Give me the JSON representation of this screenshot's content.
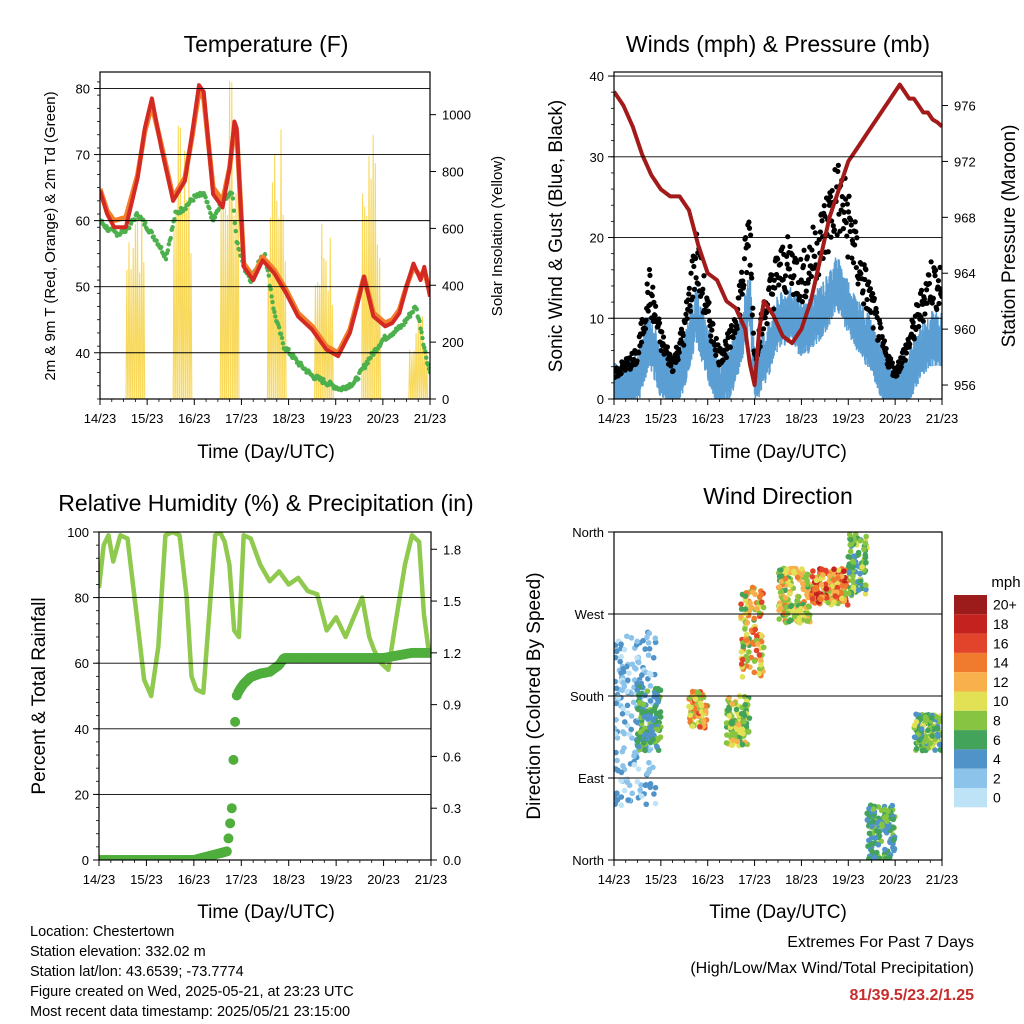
{
  "colors": {
    "temp_2m": "#d42a24",
    "temp_9m": "#f47d2a",
    "dewpoint": "#4cb04c",
    "insolation": "#f8d95c",
    "gust": "#000000",
    "wind": "#5b9fd4",
    "pressure": "#a31a1a",
    "rh": "#8fc94e",
    "precip": "#4fae3c",
    "extremes": "#c62d2d"
  },
  "x_ticks": [
    "14/23",
    "15/23",
    "16/23",
    "17/23",
    "18/23",
    "19/23",
    "20/23",
    "21/23"
  ],
  "chart_data": [
    {
      "id": "temperature",
      "type": "line",
      "title": "Temperature (F)",
      "xlabel": "Time (Day/UTC)",
      "ylabel": "2m & 9m T (Red, Orange) & 2m Td (Green)",
      "ylabel_right": "Solar Insolation (Yellow)",
      "xlim": [
        0,
        7
      ],
      "ylim": [
        33,
        82.5
      ],
      "yticks": [
        40,
        50,
        60,
        70,
        80
      ],
      "ylim_right": [
        0,
        1150
      ],
      "yticks_right": [
        0,
        200,
        400,
        600,
        800,
        1000
      ],
      "grid": true,
      "series": [
        {
          "name": "2m T",
          "color_key": "temp_2m",
          "x": [
            0,
            0.15,
            0.3,
            0.55,
            0.8,
            0.95,
            1.1,
            1.3,
            1.55,
            1.8,
            1.95,
            2.1,
            2.2,
            2.4,
            2.6,
            2.75,
            2.85,
            2.9,
            3.05,
            3.25,
            3.45,
            3.7,
            3.95,
            4.2,
            4.5,
            4.8,
            5.05,
            5.3,
            5.45,
            5.6,
            5.8,
            6.05,
            6.2,
            6.35,
            6.5,
            6.65,
            6.8,
            6.88,
            7
          ],
          "y": [
            64.5,
            61,
            59,
            59,
            66.5,
            74,
            78.5,
            71,
            63,
            66,
            73,
            80.5,
            79.5,
            64,
            62,
            68,
            75,
            74,
            53,
            51,
            54,
            52,
            49,
            45.5,
            43.5,
            40.5,
            39.5,
            43,
            47,
            51.5,
            45.5,
            44,
            44.5,
            46,
            50,
            53.5,
            51,
            53,
            48.5
          ]
        },
        {
          "name": "9m T",
          "color_key": "temp_9m",
          "x": [
            0,
            0.15,
            0.3,
            0.55,
            0.8,
            0.95,
            1.1,
            1.3,
            1.55,
            1.8,
            1.95,
            2.1,
            2.2,
            2.4,
            2.6,
            2.75,
            2.85,
            2.9,
            3.05,
            3.25,
            3.45,
            3.7,
            3.95,
            4.2,
            4.5,
            4.8,
            5.05,
            5.3,
            5.45,
            5.6,
            5.8,
            6.05,
            6.2,
            6.35,
            6.5,
            6.65,
            6.8,
            6.88,
            7
          ],
          "y": [
            64.8,
            61.5,
            60,
            60.5,
            67,
            73.5,
            77.5,
            71.5,
            63.5,
            66.5,
            72.5,
            79.5,
            78.5,
            65,
            63,
            68,
            74,
            73.5,
            53.5,
            51.5,
            54.5,
            52.5,
            49.5,
            46,
            44,
            41,
            40,
            43.5,
            47.5,
            51.5,
            46,
            44.5,
            45,
            46.5,
            50,
            53,
            51.5,
            52.5,
            49
          ]
        },
        {
          "name": "2m Td",
          "color_key": "dewpoint",
          "x": [
            0,
            0.2,
            0.4,
            0.6,
            0.8,
            1,
            1.2,
            1.4,
            1.6,
            1.8,
            2,
            2.2,
            2.4,
            2.6,
            2.8,
            2.9,
            3.05,
            3.2,
            3.35,
            3.5,
            3.7,
            3.9,
            4.2,
            4.5,
            4.8,
            5.1,
            5.4,
            5.7,
            6,
            6.2,
            6.4,
            6.55,
            6.7,
            6.8,
            6.9,
            7
          ],
          "y": [
            60,
            58.5,
            58,
            59,
            61,
            59,
            57,
            54.5,
            61,
            62,
            63.5,
            64,
            60,
            63,
            64.5,
            57,
            53,
            51,
            53.5,
            55,
            46,
            41,
            38.5,
            36.5,
            35.5,
            34.5,
            35.5,
            39,
            42,
            43,
            44,
            45.5,
            47,
            44,
            40,
            37
          ]
        },
        {
          "name": "Solar Insolation",
          "color_key": "insolation",
          "axis": "right",
          "peak_days": [
            0.75,
            1.75,
            2.75,
            3.75,
            4.75,
            5.75,
            6.75
          ],
          "peak_values": [
            820,
            1150,
            1150,
            1030,
            700,
            1060,
            320
          ]
        }
      ]
    },
    {
      "id": "winds",
      "type": "scatter",
      "title": "Winds (mph) & Pressure (mb)",
      "xlabel": "Time (Day/UTC)",
      "ylabel": "Sonic Wind & Gust (Blue, Black)",
      "ylabel_right": "Station Pressure (Maroon)",
      "xlim": [
        0,
        7
      ],
      "ylim": [
        0,
        40.5
      ],
      "yticks": [
        0,
        10,
        20,
        30,
        40
      ],
      "ylim_right": [
        955,
        978.4
      ],
      "yticks_right": [
        956,
        960,
        964,
        968,
        972,
        976
      ],
      "grid": true,
      "series": [
        {
          "name": "Wind",
          "color_key": "wind",
          "x": [
            0,
            0.25,
            0.5,
            0.75,
            1,
            1.25,
            1.5,
            1.75,
            2,
            2.25,
            2.5,
            2.75,
            2.9,
            3,
            3.25,
            3.5,
            3.75,
            4,
            4.25,
            4.5,
            4.75,
            5,
            5.25,
            5.5,
            5.75,
            6,
            6.25,
            6.5,
            6.75,
            7
          ],
          "y": [
            1.5,
            2,
            3,
            8,
            4,
            2,
            5,
            11,
            6,
            2,
            4,
            9,
            13,
            3,
            6,
            10,
            11,
            9,
            10,
            12,
            15,
            12,
            9,
            7,
            3,
            1,
            3,
            6,
            8,
            8
          ]
        },
        {
          "name": "Gust",
          "color_key": "gust",
          "x": [
            0,
            0.25,
            0.5,
            0.75,
            1,
            1.25,
            1.5,
            1.75,
            2,
            2.25,
            2.5,
            2.75,
            2.9,
            3,
            3.25,
            3.5,
            3.75,
            4,
            4.25,
            4.5,
            4.75,
            5,
            5.25,
            5.5,
            5.75,
            6,
            6.25,
            6.5,
            6.75,
            7
          ],
          "y": [
            3,
            4,
            5,
            13,
            7,
            4,
            8,
            17,
            10,
            5,
            7,
            14,
            20,
            5,
            11,
            15,
            16,
            14,
            17,
            20,
            24,
            21,
            15,
            11,
            6,
            3,
            6,
            10,
            14,
            13
          ]
        },
        {
          "name": "Pressure",
          "color_key": "pressure",
          "axis": "right",
          "x": [
            0,
            0.2,
            0.4,
            0.6,
            0.8,
            1,
            1.2,
            1.4,
            1.6,
            1.8,
            2,
            2.2,
            2.4,
            2.6,
            2.8,
            2.9,
            3,
            3.1,
            3.2,
            3.4,
            3.6,
            3.8,
            4,
            4.2,
            4.4,
            4.6,
            4.8,
            5,
            5.2,
            5.4,
            5.6,
            5.8,
            6,
            6.1,
            6.2,
            6.3,
            6.4,
            6.5,
            6.6,
            6.7,
            6.8,
            6.9,
            7
          ],
          "y": [
            977,
            976,
            974.5,
            972.5,
            971,
            970,
            969.5,
            969.5,
            968.5,
            966,
            964,
            963.5,
            962,
            961.5,
            960,
            957.5,
            956,
            960,
            962,
            961,
            959.5,
            959,
            960,
            962,
            965,
            968,
            970,
            972,
            973,
            974,
            975,
            976,
            977,
            977.5,
            977,
            976.5,
            976.5,
            976,
            975.5,
            975.5,
            975,
            974.8,
            974.5
          ]
        }
      ]
    },
    {
      "id": "humidity",
      "type": "line",
      "title": "Relative Humidity (%) & Precipitation (in)",
      "xlabel": "Time (Day/UTC)",
      "ylabel": "Percent & Total Rainfall",
      "xlim": [
        0,
        7
      ],
      "ylim": [
        0,
        100
      ],
      "yticks": [
        0,
        20,
        40,
        60,
        80,
        100
      ],
      "ylim_right": [
        0,
        1.9
      ],
      "yticks_right": [
        "0.0",
        "0.3",
        "0.6",
        "0.9",
        "1.2",
        "1.5",
        "1.8"
      ],
      "grid": true,
      "series": [
        {
          "name": "RH",
          "color_key": "rh",
          "x": [
            0,
            0.1,
            0.2,
            0.3,
            0.45,
            0.6,
            0.8,
            0.95,
            1.1,
            1.25,
            1.4,
            1.55,
            1.7,
            1.85,
            1.95,
            2.05,
            2.2,
            2.35,
            2.45,
            2.55,
            2.65,
            2.75,
            2.85,
            2.95,
            3.05,
            3.2,
            3.4,
            3.6,
            3.8,
            4,
            4.2,
            4.4,
            4.6,
            4.8,
            5,
            5.2,
            5.4,
            5.55,
            5.7,
            5.8,
            5.95,
            6.1,
            6.25,
            6.45,
            6.6,
            6.75,
            6.85,
            6.95,
            7
          ],
          "y": [
            83,
            96,
            99,
            91,
            99,
            98,
            74,
            55,
            50,
            65,
            99,
            100,
            99,
            80,
            56,
            52,
            51,
            80,
            99,
            100,
            97,
            90,
            70,
            68,
            99,
            98,
            90,
            85,
            88,
            84,
            86,
            82,
            81,
            70,
            74,
            68,
            75,
            80,
            68,
            64,
            60,
            58,
            72,
            90,
            99,
            97,
            75,
            64,
            63
          ]
        },
        {
          "name": "Precipitation",
          "color_key": "precip",
          "x": [
            0,
            1,
            2,
            2.7,
            2.8,
            2.85,
            2.9,
            2.95,
            3,
            3.05,
            3.2,
            3.4,
            3.6,
            3.8,
            3.9,
            4.2,
            4.6,
            5,
            5.4,
            5.8,
            6,
            6.2,
            6.4,
            6.6,
            6.8,
            7
          ],
          "y": [
            0,
            0,
            0,
            0.05,
            0.3,
            0.7,
            0.95,
            0.98,
            1.0,
            1.02,
            1.06,
            1.08,
            1.09,
            1.13,
            1.17,
            1.17,
            1.17,
            1.17,
            1.17,
            1.17,
            1.17,
            1.18,
            1.19,
            1.2,
            1.2,
            1.2
          ]
        }
      ]
    },
    {
      "id": "direction",
      "type": "scatter",
      "title": "Wind Direction",
      "xlabel": "Time (Day/UTC)",
      "ylabel": "Direction (Colored By Speed)",
      "xlim": [
        0,
        7
      ],
      "ylim": [
        0,
        360
      ],
      "ytick_values": [
        0,
        90,
        180,
        270,
        360
      ],
      "yticks": [
        "North",
        "East",
        "South",
        "West",
        "North"
      ],
      "grid": true,
      "colorbar": {
        "title": "mph",
        "labels": [
          "0",
          "2",
          "4",
          "6",
          "8",
          "10",
          "12",
          "14",
          "16",
          "18",
          "20+"
        ],
        "colors": [
          "#bfe3f6",
          "#8cc3ea",
          "#4f93c9",
          "#43a35b",
          "#86c441",
          "#e2e156",
          "#f7b04b",
          "#f07a2e",
          "#e2432b",
          "#c3221e",
          "#9c1b1b"
        ]
      },
      "clusters": [
        {
          "x": [
            0.0,
            0.9
          ],
          "dir": [
            60,
            250
          ],
          "speed": [
            0,
            5
          ]
        },
        {
          "x": [
            0.5,
            1.0
          ],
          "dir": [
            120,
            190
          ],
          "speed": [
            3,
            8
          ]
        },
        {
          "x": [
            1.6,
            2.0
          ],
          "dir": [
            145,
            185
          ],
          "speed": [
            8,
            16
          ]
        },
        {
          "x": [
            2.4,
            2.9
          ],
          "dir": [
            125,
            180
          ],
          "speed": [
            5,
            12
          ]
        },
        {
          "x": [
            2.7,
            3.2
          ],
          "dir": [
            200,
            300
          ],
          "speed": [
            6,
            16
          ]
        },
        {
          "x": [
            3.5,
            4.2
          ],
          "dir": [
            260,
            320
          ],
          "speed": [
            6,
            14
          ]
        },
        {
          "x": [
            4.2,
            5.0
          ],
          "dir": [
            280,
            320
          ],
          "speed": [
            8,
            18
          ]
        },
        {
          "x": [
            5.0,
            5.4
          ],
          "dir": [
            290,
            358
          ],
          "speed": [
            4,
            10
          ]
        },
        {
          "x": [
            5.4,
            6.0
          ],
          "dir": [
            0,
            60
          ],
          "speed": [
            3,
            9
          ]
        },
        {
          "x": [
            6.4,
            7.0
          ],
          "dir": [
            120,
            160
          ],
          "speed": [
            4,
            10
          ]
        }
      ]
    }
  ],
  "station_info": {
    "location": "Location: Chestertown",
    "elevation": "Station elevation: 332.02 m",
    "latlon": "Station lat/lon: 43.6539; -73.7774",
    "created": "Figure created on Wed, 2025-05-21, at 23:23 UTC",
    "latest": "Most recent data timestamp: 2025/05/21 23:15:00"
  },
  "extremes": {
    "title": "Extremes For Past 7 Days",
    "subtitle": "(High/Low/Max Wind/Total Precipitation)",
    "values": "81/39.5/23.2/1.25"
  }
}
